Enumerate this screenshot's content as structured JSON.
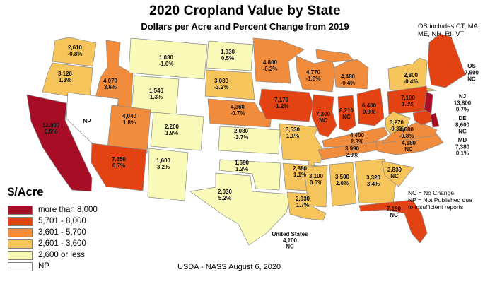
{
  "title": "2020 Cropland Value by State",
  "subtitle": "Dollars per Acre and Percent Change from 2019",
  "os_note": [
    "OS includes CT, MA,",
    "ME, NH, RI, VT"
  ],
  "abbrev_note": [
    "NC = No Change",
    "NP = Not Published due",
    "to insufficient reports"
  ],
  "source": "USDA - NASS August 6, 2020",
  "legend": {
    "title": "$/Acre",
    "items": [
      {
        "label": "more than 8,000",
        "color": "#A80D26"
      },
      {
        "label": "5,701 - 8,000",
        "color": "#E34312"
      },
      {
        "label": "3,601 - 5,700",
        "color": "#F08C3C"
      },
      {
        "label": "2,601 - 3,600",
        "color": "#F5C45B"
      },
      {
        "label": "2,600 or less",
        "color": "#FAFAB8"
      },
      {
        "label": "NP",
        "color": "#FFFFFF"
      }
    ]
  },
  "us_total": {
    "label": "United States",
    "value": "4,100",
    "change": "NC"
  },
  "states": [
    {
      "id": "WA",
      "value": "2,610",
      "change": "-0.8%",
      "category": 3
    },
    {
      "id": "OR",
      "value": "3,120",
      "change": "1.3%",
      "category": 3
    },
    {
      "id": "CA",
      "value": "12,900",
      "change": "0.5%",
      "category": 0
    },
    {
      "id": "ID",
      "value": "4,070",
      "change": "3.6%",
      "category": 2
    },
    {
      "id": "NV",
      "value": "NP",
      "change": "",
      "category": 5
    },
    {
      "id": "MT",
      "value": "1,030",
      "change": "-1.0%",
      "category": 4
    },
    {
      "id": "WY",
      "value": "1,540",
      "change": "1.3%",
      "category": 4
    },
    {
      "id": "UT",
      "value": "4,040",
      "change": "1.8%",
      "category": 2
    },
    {
      "id": "CO",
      "value": "2,200",
      "change": "1.9%",
      "category": 4
    },
    {
      "id": "AZ",
      "value": "7,650",
      "change": "0.7%",
      "category": 1
    },
    {
      "id": "NM",
      "value": "1,600",
      "change": "3.2%",
      "category": 4
    },
    {
      "id": "ND",
      "value": "1,930",
      "change": "0.5%",
      "category": 4
    },
    {
      "id": "SD",
      "value": "3,030",
      "change": "-3.2%",
      "category": 3
    },
    {
      "id": "NE",
      "value": "4,360",
      "change": "-0.7%",
      "category": 2
    },
    {
      "id": "KS",
      "value": "2,080",
      "change": "-3.7%",
      "category": 4
    },
    {
      "id": "OK",
      "value": "1,690",
      "change": "1.2%",
      "category": 4
    },
    {
      "id": "TX",
      "value": "2,030",
      "change": "5.2%",
      "category": 4
    },
    {
      "id": "MN",
      "value": "4,800",
      "change": "-0.2%",
      "category": 2
    },
    {
      "id": "IA",
      "value": "7,170",
      "change": "-1.2%",
      "category": 1
    },
    {
      "id": "MO",
      "value": "3,530",
      "change": "1.1%",
      "category": 3
    },
    {
      "id": "AR",
      "value": "2,880",
      "change": "1.1%",
      "category": 3
    },
    {
      "id": "LA",
      "value": "2,930",
      "change": "1.7%",
      "category": 3
    },
    {
      "id": "WI",
      "value": "4,770",
      "change": "-1.6%",
      "category": 2
    },
    {
      "id": "MI",
      "value": "4,480",
      "change": "-0.4%",
      "category": 2
    },
    {
      "id": "IL",
      "value": "7,300",
      "change": "NC",
      "category": 1
    },
    {
      "id": "IN",
      "value": "6,210",
      "change": "NC",
      "category": 1
    },
    {
      "id": "OH",
      "value": "6,460",
      "change": "0.9%",
      "category": 1
    },
    {
      "id": "KY",
      "value": "4,400",
      "change": "2.3%",
      "category": 2
    },
    {
      "id": "TN",
      "value": "3,990",
      "change": "2.0%",
      "category": 2
    },
    {
      "id": "MS",
      "value": "3,100",
      "change": "0.6%",
      "category": 3
    },
    {
      "id": "AL",
      "value": "3,500",
      "change": "2.0%",
      "category": 3
    },
    {
      "id": "GA",
      "value": "3,320",
      "change": "3.4%",
      "category": 3
    },
    {
      "id": "SC",
      "value": "2,830",
      "change": "NC",
      "category": 3
    },
    {
      "id": "FL",
      "value": "7,190",
      "change": "NC",
      "category": 1
    },
    {
      "id": "NC",
      "value": "4,180",
      "change": "NC",
      "category": 2
    },
    {
      "id": "OS",
      "value": "7,900",
      "change": "NC",
      "category": 1
    },
    {
      "id": "NY",
      "value": "2,800",
      "change": "-0.4%",
      "category": 3
    },
    {
      "id": "PA",
      "value": "7,100",
      "change": "1.0%",
      "category": 1
    },
    {
      "id": "WV",
      "value": "3,270",
      "change": "-0.3%",
      "category": 3
    },
    {
      "id": "VA",
      "value": "4,680",
      "change": "-0.8%",
      "category": 2
    },
    {
      "id": "MD",
      "value": "7,380",
      "change": "0.1%",
      "category": 1
    },
    {
      "id": "DE",
      "value": "8,600",
      "change": "NC",
      "category": 0
    },
    {
      "id": "NJ",
      "value": "13,800",
      "change": "0.7%",
      "category": 0
    }
  ],
  "chart_data": {
    "type": "heatmap",
    "subtype": "us-choropleth",
    "title": "2020 Cropland Value by State",
    "subtitle": "Dollars per Acre and Percent Change from 2019",
    "unit": "dollars per acre",
    "bins": [
      "more than 8,000",
      "5,701 - 8,000",
      "3,601 - 5,700",
      "2,601 - 3,600",
      "2,600 or less",
      "NP"
    ],
    "legend_position": "bottom-left",
    "us_total": {
      "value": 4100,
      "percent_change": "NC"
    },
    "values": {
      "WA": [
        2610,
        -0.8
      ],
      "OR": [
        3120,
        1.3
      ],
      "CA": [
        12900,
        0.5
      ],
      "NV": [
        "NP",
        null
      ],
      "ID": [
        4070,
        3.6
      ],
      "MT": [
        1030,
        -1.0
      ],
      "WY": [
        1540,
        1.3
      ],
      "UT": [
        4040,
        1.8
      ],
      "CO": [
        2200,
        1.9
      ],
      "AZ": [
        7650,
        0.7
      ],
      "NM": [
        1600,
        3.2
      ],
      "ND": [
        1930,
        0.5
      ],
      "SD": [
        3030,
        -3.2
      ],
      "NE": [
        4360,
        -0.7
      ],
      "KS": [
        2080,
        -3.7
      ],
      "OK": [
        1690,
        1.2
      ],
      "TX": [
        2030,
        5.2
      ],
      "MN": [
        4800,
        -0.2
      ],
      "IA": [
        7170,
        -1.2
      ],
      "MO": [
        3530,
        1.1
      ],
      "AR": [
        2880,
        1.1
      ],
      "LA": [
        2930,
        1.7
      ],
      "WI": [
        4770,
        -1.6
      ],
      "MI": [
        4480,
        -0.4
      ],
      "IL": [
        7300,
        "NC"
      ],
      "IN": [
        6210,
        "NC"
      ],
      "OH": [
        6460,
        0.9
      ],
      "KY": [
        4400,
        2.3
      ],
      "TN": [
        3990,
        2.0
      ],
      "MS": [
        3100,
        0.6
      ],
      "AL": [
        3500,
        2.0
      ],
      "GA": [
        3320,
        3.4
      ],
      "SC": [
        2830,
        "NC"
      ],
      "FL": [
        7190,
        "NC"
      ],
      "NC": [
        4180,
        "NC"
      ],
      "VA": [
        4680,
        -0.8
      ],
      "WV": [
        3270,
        -0.3
      ],
      "PA": [
        7100,
        1.0
      ],
      "NY": [
        2800,
        -0.4
      ],
      "NJ": [
        13800,
        0.7
      ],
      "DE": [
        8600,
        "NC"
      ],
      "MD": [
        7380,
        0.1
      ],
      "OS": [
        7900,
        "NC"
      ]
    }
  }
}
